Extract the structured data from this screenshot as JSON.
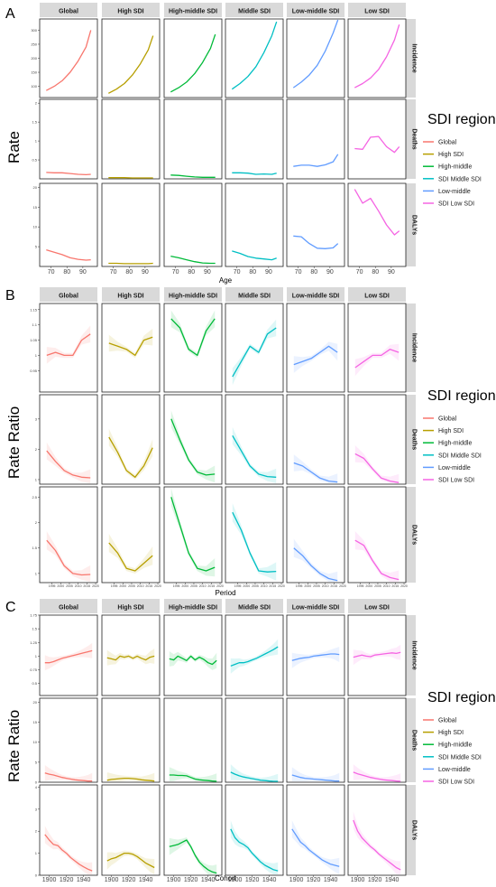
{
  "figure": {
    "facet_titles": [
      "Global",
      "High SDI",
      "High-middle SDI",
      "Middle SDI",
      "Low-middle SDI",
      "Low SDI"
    ],
    "row_titles": [
      "Incidence",
      "Deaths",
      "DALYs"
    ],
    "series_colors": [
      "#F8766D",
      "#B79F00",
      "#00BA38",
      "#00BFC4",
      "#619CFF",
      "#F564E3"
    ],
    "legend": {
      "title": "SDI region",
      "entries": [
        "Global",
        "High SDI",
        "High-middle",
        "SDI Middle SDI",
        "Low-middle",
        "SDI Low SDI"
      ]
    }
  },
  "chart_data": [
    {
      "type": "line",
      "panel_letter": "A",
      "ylabel": "Rate",
      "xlabel": "Age",
      "x": [
        67,
        72,
        77,
        82,
        87,
        92,
        95
      ],
      "x_ticks": [
        70,
        80,
        90
      ],
      "xlim": [
        64,
        98
      ],
      "rows": [
        {
          "name": "Incidence",
          "ylim": [
            60,
            340
          ],
          "y_ticks": [
            50,
            100,
            150,
            200,
            250,
            300,
            350
          ],
          "series": [
            {
              "values": [
                85,
                100,
                120,
                150,
                190,
                240,
                300
              ]
            },
            {
              "values": [
                75,
                90,
                110,
                140,
                180,
                230,
                280
              ]
            },
            {
              "values": [
                80,
                95,
                115,
                145,
                185,
                235,
                285
              ]
            },
            {
              "values": [
                90,
                110,
                135,
                170,
                220,
                280,
                330
              ]
            },
            {
              "values": [
                95,
                115,
                140,
                175,
                225,
                290,
                340
              ]
            },
            {
              "values": [
                95,
                110,
                130,
                160,
                205,
                265,
                320
              ]
            }
          ]
        },
        {
          "name": "Deaths",
          "ylim": [
            0,
            2.1
          ],
          "y_ticks": [
            0.5,
            1.0,
            1.5,
            2.0
          ],
          "series": [
            {
              "values": [
                0.17,
                0.16,
                0.16,
                0.14,
                0.12,
                0.11,
                0.12
              ]
            },
            {
              "values": [
                0.03,
                0.03,
                0.03,
                0.02,
                0.02,
                0.02,
                0.02
              ]
            },
            {
              "values": [
                0.1,
                0.09,
                0.07,
                0.05,
                0.04,
                0.04,
                0.04
              ]
            },
            {
              "values": [
                0.16,
                0.16,
                0.15,
                0.12,
                0.13,
                0.12,
                0.15
              ]
            },
            {
              "values": [
                0.33,
                0.36,
                0.36,
                0.33,
                0.37,
                0.45,
                0.65
              ]
            },
            {
              "values": [
                0.8,
                0.78,
                1.1,
                1.12,
                0.85,
                0.7,
                0.85
              ]
            }
          ]
        },
        {
          "name": "DALYs",
          "ylim": [
            0,
            21
          ],
          "y_ticks": [
            5,
            10,
            15,
            20
          ],
          "series": [
            {
              "values": [
                4.2,
                3.6,
                3.0,
                2.2,
                1.8,
                1.6,
                1.7
              ]
            },
            {
              "values": [
                0.8,
                0.8,
                0.7,
                0.7,
                0.7,
                0.7,
                0.8
              ]
            },
            {
              "values": [
                2.6,
                2.2,
                1.7,
                1.2,
                0.9,
                0.8,
                0.8
              ]
            },
            {
              "values": [
                3.9,
                3.3,
                2.5,
                2.1,
                1.9,
                1.7,
                2.1
              ]
            },
            {
              "values": [
                7.7,
                7.5,
                5.8,
                4.6,
                4.5,
                4.7,
                5.8
              ]
            },
            {
              "values": [
                19.5,
                16.0,
                17.2,
                14.0,
                10.5,
                8.0,
                9.0
              ]
            }
          ]
        }
      ],
      "bands": false
    },
    {
      "type": "line",
      "panel_letter": "B",
      "ylabel": "Rate Ratio",
      "xlabel": "Period",
      "x": [
        1992,
        1997,
        2002,
        2007,
        2012,
        2017
      ],
      "x_ticks": [
        1995,
        2000,
        2005,
        2010,
        2015,
        2020
      ],
      "xlim": [
        1989,
        2020
      ],
      "rows": [
        {
          "name": "Incidence",
          "ylim": [
            0.88,
            1.17
          ],
          "y_ticks": [
            0.95,
            1.0,
            1.05,
            1.1,
            1.15
          ],
          "series": [
            {
              "values": [
                1.0,
                1.01,
                1.0,
                1.0,
                1.05,
                1.07
              ]
            },
            {
              "values": [
                1.04,
                1.03,
                1.02,
                1.0,
                1.05,
                1.06
              ]
            },
            {
              "values": [
                1.12,
                1.09,
                1.02,
                1.0,
                1.08,
                1.12
              ]
            },
            {
              "values": [
                0.93,
                0.98,
                1.03,
                1.01,
                1.07,
                1.09
              ]
            },
            {
              "values": [
                0.97,
                0.98,
                0.99,
                1.01,
                1.03,
                1.01
              ]
            },
            {
              "values": [
                0.96,
                0.98,
                1.0,
                1.0,
                1.02,
                1.01
              ]
            }
          ]
        },
        {
          "name": "Deaths",
          "ylim": [
            0.85,
            3.8
          ],
          "y_ticks": [
            1,
            2,
            3
          ],
          "series": [
            {
              "values": [
                1.95,
                1.6,
                1.3,
                1.15,
                1.08,
                1.06
              ]
            },
            {
              "values": [
                2.4,
                1.9,
                1.3,
                1.08,
                1.45,
                2.05
              ]
            },
            {
              "values": [
                3.0,
                2.3,
                1.65,
                1.25,
                1.15,
                1.18
              ]
            },
            {
              "values": [
                2.45,
                1.95,
                1.45,
                1.18,
                1.1,
                1.08
              ]
            },
            {
              "values": [
                1.55,
                1.45,
                1.25,
                1.05,
                0.95,
                0.92
              ]
            },
            {
              "values": [
                1.85,
                1.7,
                1.35,
                1.05,
                0.95,
                0.9
              ]
            }
          ]
        },
        {
          "name": "DALYs",
          "ylim": [
            0.82,
            2.7
          ],
          "y_ticks": [
            1.0,
            1.5,
            2.0,
            2.5
          ],
          "series": [
            {
              "values": [
                1.65,
                1.45,
                1.15,
                1.0,
                0.97,
                0.98
              ]
            },
            {
              "values": [
                1.6,
                1.4,
                1.1,
                1.05,
                1.2,
                1.35
              ]
            },
            {
              "values": [
                2.5,
                1.95,
                1.4,
                1.1,
                1.05,
                1.12
              ]
            },
            {
              "values": [
                2.2,
                1.85,
                1.4,
                1.05,
                1.03,
                1.04
              ]
            },
            {
              "values": [
                1.5,
                1.35,
                1.15,
                1.0,
                0.9,
                0.86
              ]
            },
            {
              "values": [
                1.65,
                1.55,
                1.25,
                1.0,
                0.92,
                0.88
              ]
            }
          ]
        }
      ],
      "bands": true
    },
    {
      "type": "line",
      "panel_letter": "C",
      "ylabel": "Rate Ratio",
      "xlabel": "Cohort",
      "x": [
        1895,
        1900,
        1905,
        1910,
        1915,
        1920,
        1925,
        1930,
        1935,
        1940,
        1945,
        1950
      ],
      "x_ticks": [
        1900,
        1920,
        1940
      ],
      "xlim": [
        1891,
        1954
      ],
      "rows": [
        {
          "name": "Incidence",
          "ylim": [
            0.28,
            1.75
          ],
          "y_ticks": [
            0.25,
            0.5,
            0.75,
            1.0,
            1.25,
            1.5,
            1.75
          ],
          "series": [
            {
              "values": [
                0.88,
                0.88,
                0.9,
                0.93,
                0.96,
                0.98,
                1.0,
                1.02,
                1.04,
                1.06,
                1.08,
                1.1
              ]
            },
            {
              "values": [
                0.97,
                0.95,
                0.93,
                1.0,
                0.98,
                1.0,
                0.96,
                1.0,
                0.96,
                0.93,
                0.98,
                1.0
              ]
            },
            {
              "values": [
                0.95,
                0.93,
                1.0,
                0.96,
                0.92,
                1.0,
                0.93,
                0.98,
                0.94,
                0.88,
                0.85,
                0.92
              ]
            },
            {
              "values": [
                0.82,
                0.85,
                0.88,
                0.88,
                0.9,
                0.93,
                0.96,
                1.0,
                1.04,
                1.08,
                1.12,
                1.17
              ]
            },
            {
              "values": [
                0.92,
                0.94,
                0.96,
                0.97,
                0.98,
                1.0,
                1.01,
                1.02,
                1.03,
                1.04,
                1.04,
                1.03
              ]
            },
            {
              "values": [
                0.98,
                1.0,
                1.02,
                1.0,
                0.99,
                1.02,
                1.03,
                1.04,
                1.05,
                1.06,
                1.05,
                1.07
              ]
            }
          ]
        },
        {
          "name": "Deaths",
          "ylim": [
            0,
            21
          ],
          "y_ticks": [
            0,
            5,
            10,
            15,
            20
          ],
          "series": [
            {
              "values": [
                2.3,
                2.0,
                1.8,
                1.5,
                1.2,
                1.0,
                0.8,
                0.6,
                0.5,
                0.4,
                0.3,
                0.3
              ]
            },
            {
              "values": [
                0.5,
                0.7,
                0.8,
                0.9,
                1.0,
                1.0,
                0.9,
                0.8,
                0.6,
                0.5,
                0.4,
                0.3
              ]
            },
            {
              "values": [
                1.8,
                1.8,
                1.7,
                1.7,
                1.6,
                1.2,
                0.8,
                0.6,
                0.5,
                0.4,
                0.3,
                0.2
              ]
            },
            {
              "values": [
                2.5,
                2.0,
                1.6,
                1.3,
                1.1,
                0.9,
                0.7,
                0.5,
                0.4,
                0.3,
                0.2,
                0.1
              ]
            },
            {
              "values": [
                1.8,
                1.5,
                1.2,
                1.0,
                0.9,
                0.8,
                0.7,
                0.6,
                0.5,
                0.4,
                0.3,
                0.3
              ]
            },
            {
              "values": [
                2.5,
                2.1,
                1.8,
                1.5,
                1.2,
                1.0,
                0.8,
                0.6,
                0.5,
                0.4,
                0.3,
                0.2
              ]
            }
          ]
        },
        {
          "name": "DALYs",
          "ylim": [
            0,
            4.1
          ],
          "y_ticks": [
            0,
            1,
            2,
            3,
            4
          ],
          "series": [
            {
              "values": [
                1.85,
                1.6,
                1.4,
                1.35,
                1.15,
                1.0,
                0.8,
                0.65,
                0.5,
                0.38,
                0.28,
                0.2
              ]
            },
            {
              "values": [
                0.65,
                0.75,
                0.8,
                0.9,
                1.0,
                1.0,
                0.95,
                0.85,
                0.7,
                0.55,
                0.45,
                0.35
              ]
            },
            {
              "values": [
                1.3,
                1.35,
                1.4,
                1.5,
                1.6,
                1.3,
                0.9,
                0.6,
                0.4,
                0.25,
                0.15,
                0.1
              ]
            },
            {
              "values": [
                2.1,
                1.7,
                1.5,
                1.4,
                1.25,
                1.0,
                0.8,
                0.6,
                0.45,
                0.35,
                0.25,
                0.2
              ]
            },
            {
              "values": [
                2.1,
                1.8,
                1.5,
                1.35,
                1.15,
                1.0,
                0.85,
                0.7,
                0.6,
                0.5,
                0.45,
                0.4
              ]
            },
            {
              "values": [
                2.5,
                2.0,
                1.7,
                1.5,
                1.3,
                1.15,
                0.95,
                0.8,
                0.65,
                0.5,
                0.35,
                0.25
              ]
            }
          ]
        }
      ],
      "bands": true
    }
  ]
}
